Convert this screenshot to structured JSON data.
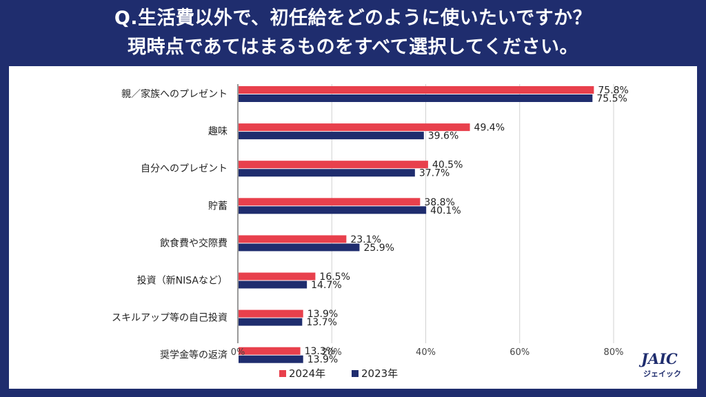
{
  "title_line1": "Q.生活費以外で、初任給をどのように使いたいですか？",
  "title_line2": "現時点であてはまるものをすべて選択してください。",
  "logo": {
    "main": "JAIC",
    "sub": "ジェイック"
  },
  "colors": {
    "series_2024": "#e8404c",
    "series_2023": "#1f2d6e",
    "background": "#1f2d6e"
  },
  "chart_data": {
    "type": "bar",
    "orientation": "horizontal",
    "categories": [
      "親／家族へのプレゼント",
      "趣味",
      "自分へのプレゼント",
      "貯蓄",
      "飲食費や交際費",
      "投資（新NISAなど）",
      "スキルアップ等の自己投資",
      "奨学金等の返済"
    ],
    "series": [
      {
        "name": "2024年",
        "values": [
          75.8,
          49.4,
          40.5,
          38.8,
          23.1,
          16.5,
          13.9,
          13.3
        ]
      },
      {
        "name": "2023年",
        "values": [
          75.5,
          39.6,
          37.7,
          40.1,
          25.9,
          14.7,
          13.7,
          13.9
        ]
      }
    ],
    "value_labels": {
      "2024年": [
        "75.8%",
        "49.4%",
        "40.5%",
        "38.8%",
        "23.1%",
        "16.5%",
        "13.9%",
        "13.3%"
      ],
      "2023年": [
        "75.5%",
        "39.6%",
        "37.7%",
        "40.1%",
        "25.9%",
        "14.7%",
        "13.7%",
        "13.9%"
      ]
    },
    "xlim": [
      0,
      80
    ],
    "xticks": [
      0,
      20,
      40,
      60,
      80
    ],
    "xtick_labels": [
      "0%",
      "20%",
      "40%",
      "60%",
      "80%"
    ],
    "grid": true,
    "legend_position": "bottom"
  }
}
